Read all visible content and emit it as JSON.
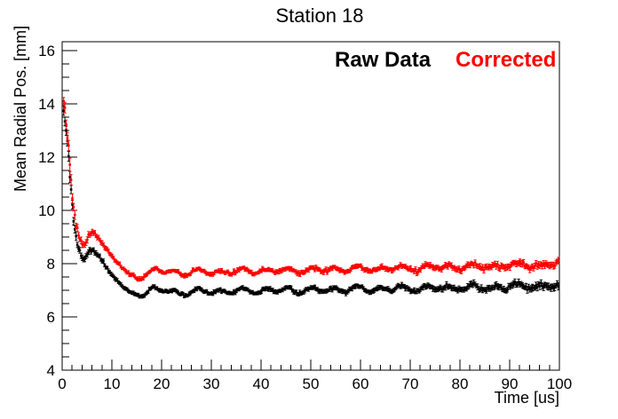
{
  "chart_data": {
    "type": "scatter",
    "title": "Station 18",
    "xlabel": "Time [us]",
    "ylabel": "Mean Radial Pos. [mm]",
    "xlim": [
      0,
      100
    ],
    "ylim": [
      4,
      16.33
    ],
    "xticks": [
      0,
      10,
      20,
      30,
      40,
      50,
      60,
      70,
      80,
      90,
      100
    ],
    "yticks": [
      4,
      6,
      8,
      10,
      12,
      14,
      16
    ],
    "x_minor_step": 2,
    "y_minor_step": 0.5,
    "grid": false,
    "legend_position": "top-right-inside",
    "marker": "square",
    "background": "#ffffff",
    "frame_color": "#000000",
    "sampling": {
      "t_start": 0.3,
      "t_step": 0.25,
      "t_end": 100,
      "seed": 73
    },
    "wiggle": {
      "ramp_start": 13,
      "ramp_width": 4,
      "components": [
        {
          "period": 4.6,
          "amp": 0.085,
          "phase_t": 17.95
        },
        {
          "period": 7.9,
          "amp": 0.04,
          "phase_t": 20.0
        }
      ]
    },
    "error_anchors": [
      [
        0.3,
        0.17
      ],
      [
        1.5,
        0.2
      ],
      [
        3,
        0.12
      ],
      [
        6,
        0.08
      ],
      [
        12,
        0.055
      ],
      [
        30,
        0.055
      ],
      [
        60,
        0.07
      ],
      [
        85,
        0.09
      ],
      [
        100,
        0.11
      ]
    ],
    "series": [
      {
        "name": "Raw Data",
        "color": "#000000",
        "trend_anchors": [
          [
            0.3,
            13.7
          ],
          [
            0.6,
            13.3
          ],
          [
            0.9,
            12.8
          ],
          [
            1.2,
            12.2
          ],
          [
            1.5,
            11.5
          ],
          [
            1.8,
            10.8
          ],
          [
            2.1,
            10.0
          ],
          [
            2.4,
            9.5
          ],
          [
            2.7,
            9.15
          ],
          [
            3.0,
            8.85
          ],
          [
            3.3,
            8.6
          ],
          [
            3.6,
            8.42
          ],
          [
            4.0,
            8.25
          ],
          [
            4.4,
            8.15
          ],
          [
            4.8,
            8.25
          ],
          [
            5.2,
            8.38
          ],
          [
            5.6,
            8.48
          ],
          [
            6.0,
            8.52
          ],
          [
            6.4,
            8.5
          ],
          [
            6.8,
            8.42
          ],
          [
            7.2,
            8.32
          ],
          [
            7.6,
            8.22
          ],
          [
            8.0,
            8.1
          ],
          [
            8.5,
            7.95
          ],
          [
            9.0,
            7.82
          ],
          [
            9.5,
            7.7
          ],
          [
            10,
            7.6
          ],
          [
            11,
            7.38
          ],
          [
            12,
            7.18
          ],
          [
            13,
            7.0
          ],
          [
            14,
            6.9
          ],
          [
            15,
            6.84
          ],
          [
            16,
            6.86
          ],
          [
            17,
            6.92
          ],
          [
            18,
            7.0
          ],
          [
            19,
            7.06
          ],
          [
            20,
            7.0
          ],
          [
            22,
            6.94
          ],
          [
            24,
            6.92
          ],
          [
            26,
            6.93
          ],
          [
            28,
            6.94
          ],
          [
            30,
            6.95
          ],
          [
            35,
            6.97
          ],
          [
            40,
            6.99
          ],
          [
            45,
            7.0
          ],
          [
            50,
            7.0
          ],
          [
            55,
            7.02
          ],
          [
            60,
            7.04
          ],
          [
            65,
            7.05
          ],
          [
            70,
            7.07
          ],
          [
            75,
            7.09
          ],
          [
            80,
            7.1
          ],
          [
            85,
            7.11
          ],
          [
            90,
            7.13
          ],
          [
            95,
            7.15
          ],
          [
            100,
            7.17
          ]
        ]
      },
      {
        "name": "Corrected",
        "color": "#ff0000",
        "trend_anchors": [
          [
            0.3,
            14.0
          ],
          [
            0.6,
            13.6
          ],
          [
            0.9,
            13.1
          ],
          [
            1.2,
            12.5
          ],
          [
            1.5,
            11.8
          ],
          [
            1.8,
            11.1
          ],
          [
            2.1,
            10.4
          ],
          [
            2.4,
            9.9
          ],
          [
            2.7,
            9.55
          ],
          [
            3.0,
            9.3
          ],
          [
            3.3,
            9.1
          ],
          [
            3.6,
            8.95
          ],
          [
            4.0,
            8.8
          ],
          [
            4.4,
            8.75
          ],
          [
            4.8,
            8.85
          ],
          [
            5.2,
            9.0
          ],
          [
            5.6,
            9.1
          ],
          [
            6.0,
            9.18
          ],
          [
            6.4,
            9.18
          ],
          [
            6.8,
            9.1
          ],
          [
            7.2,
            9.0
          ],
          [
            7.6,
            8.9
          ],
          [
            8.0,
            8.78
          ],
          [
            8.5,
            8.62
          ],
          [
            9.0,
            8.5
          ],
          [
            9.5,
            8.38
          ],
          [
            10,
            8.28
          ],
          [
            11,
            8.05
          ],
          [
            12,
            7.85
          ],
          [
            13,
            7.67
          ],
          [
            14,
            7.55
          ],
          [
            15,
            7.48
          ],
          [
            16,
            7.5
          ],
          [
            17,
            7.58
          ],
          [
            18,
            7.7
          ],
          [
            19,
            7.78
          ],
          [
            20,
            7.72
          ],
          [
            22,
            7.68
          ],
          [
            24,
            7.67
          ],
          [
            26,
            7.68
          ],
          [
            28,
            7.68
          ],
          [
            30,
            7.68
          ],
          [
            35,
            7.71
          ],
          [
            40,
            7.73
          ],
          [
            45,
            7.74
          ],
          [
            50,
            7.76
          ],
          [
            55,
            7.78
          ],
          [
            60,
            7.8
          ],
          [
            65,
            7.81
          ],
          [
            70,
            7.83
          ],
          [
            75,
            7.85
          ],
          [
            80,
            7.88
          ],
          [
            85,
            7.9
          ],
          [
            90,
            7.93
          ],
          [
            95,
            7.95
          ],
          [
            100,
            7.98
          ]
        ]
      }
    ]
  }
}
